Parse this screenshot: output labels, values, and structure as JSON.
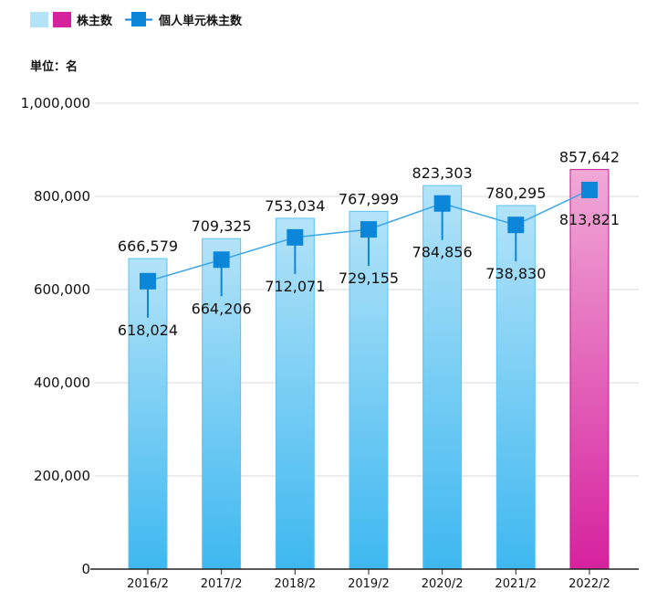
{
  "legend": {
    "bar_label": "株主数",
    "line_label": "個人単元株主数"
  },
  "unit_label": "単位：名",
  "colors": {
    "bar_light_top": "#b3e3f8",
    "bar_light_bottom": "#3eb8f0",
    "bar_light_stroke": "#5bc3f2",
    "bar_highlight_top": "#f0a9d6",
    "bar_highlight_bottom": "#d6229e",
    "bar_highlight_stroke": "#c21d8d",
    "line": "#3aa6e6",
    "marker": "#0b86d9",
    "grid": "#d9d9d9",
    "axis": "#222222"
  },
  "chart_data": {
    "type": "bar",
    "categories": [
      "2016/2",
      "2017/2",
      "2018/2",
      "2019/2",
      "2020/2",
      "2021/2",
      "2022/2"
    ],
    "series": [
      {
        "name": "株主数",
        "type": "bar",
        "values": [
          666579,
          709325,
          753034,
          767999,
          823303,
          780295,
          857642
        ],
        "labels": [
          "666,579",
          "709,325",
          "753,034",
          "767,999",
          "823,303",
          "780,295",
          "857,642"
        ],
        "highlight_index": 6
      },
      {
        "name": "個人単元株主数",
        "type": "line",
        "values": [
          618024,
          664206,
          712071,
          729155,
          784856,
          738830,
          813821
        ],
        "labels": [
          "618,024",
          "664,206",
          "712,071",
          "729,155",
          "784,856",
          "738,830",
          "813,821"
        ]
      }
    ],
    "ylim": [
      0,
      1000000
    ],
    "yticks": [
      0,
      200000,
      400000,
      600000,
      800000,
      1000000
    ],
    "ytick_labels": [
      "0",
      "200,000",
      "400,000",
      "600,000",
      "800,000",
      "1,000,000"
    ],
    "grid": true,
    "legend_position": "top-left",
    "title": "",
    "xlabel": "",
    "ylabel": "単位：名"
  }
}
